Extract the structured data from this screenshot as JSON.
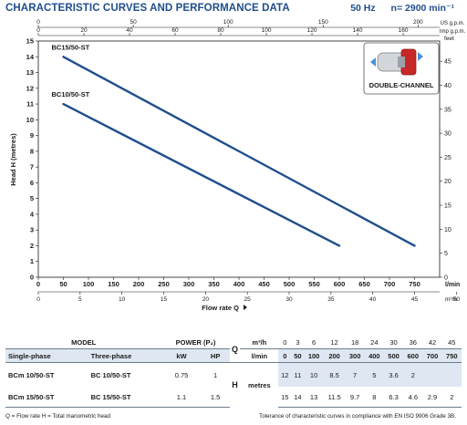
{
  "header": {
    "title": "CHARACTERISTIC CURVES AND PERFORMANCE DATA",
    "frequency": "50 Hz",
    "speed": "n= 2900 min⁻¹"
  },
  "chart_data": {
    "type": "line",
    "xlabel": "Flow rate Q",
    "ylabel": "Head H (metres)",
    "x_unit": "l/min",
    "xlim": [
      0,
      800
    ],
    "ylim": [
      0,
      15
    ],
    "x_ticks": [
      0,
      50,
      100,
      150,
      200,
      250,
      300,
      350,
      400,
      450,
      500,
      550,
      600,
      650,
      700,
      750
    ],
    "y_ticks": [
      0,
      1,
      2,
      3,
      4,
      5,
      6,
      7,
      8,
      9,
      10,
      11,
      12,
      13,
      14,
      15
    ],
    "grid": false,
    "top_axis_uspgm": {
      "unit": "US g.p.m.",
      "ticks": [
        0,
        50,
        100,
        150,
        200
      ]
    },
    "top_axis_impgpm": {
      "unit": "Imp g.p.m.",
      "ticks": [
        0,
        20,
        40,
        60,
        80,
        100,
        120,
        140,
        160
      ]
    },
    "bottom_axis_m3h": {
      "unit": "m³/h",
      "ticks": [
        0,
        5,
        10,
        15,
        20,
        25,
        30,
        35,
        40,
        45,
        50
      ]
    },
    "right_axis_feet": {
      "unit": "feet",
      "ticks": [
        0,
        5,
        10,
        15,
        20,
        25,
        30,
        35,
        40,
        45
      ]
    },
    "series": [
      {
        "name": "BC15/50-ST",
        "x": [
          50,
          750
        ],
        "y": [
          14,
          2
        ]
      },
      {
        "name": "BC10/50-ST",
        "x": [
          50,
          600
        ],
        "y": [
          11,
          2
        ]
      }
    ],
    "annotations": [
      "DOUBLE-CHANNEL"
    ]
  },
  "table": {
    "model_label": "MODEL",
    "single_phase_label": "Single-phase",
    "three_phase_label": "Three-phase",
    "power_label": "POWER (P₂)",
    "kw_label": "kW",
    "hp_label": "HP",
    "q_label": "Q",
    "h_label": "H",
    "m3h_label": "m³/h",
    "lmin_label": "l/min",
    "metres_label": "metres",
    "q_m3h": [
      "0",
      "3",
      "6",
      "12",
      "18",
      "24",
      "30",
      "36",
      "42",
      "45"
    ],
    "q_lmin": [
      "0",
      "50",
      "100",
      "200",
      "300",
      "400",
      "500",
      "600",
      "700",
      "750"
    ],
    "rows": [
      {
        "single": "BCm 10/50-ST",
        "three": "BC 10/50-ST",
        "kw": "0.75",
        "hp": "1",
        "h": [
          "12",
          "11",
          "10",
          "8.5",
          "7",
          "5",
          "3.6",
          "2",
          "",
          ""
        ]
      },
      {
        "single": "BCm 15/50-ST",
        "three": "BC 15/50-ST",
        "kw": "1.1",
        "hp": "1.5",
        "h": [
          "15",
          "14",
          "13",
          "11.5",
          "9.7",
          "8",
          "6.3",
          "4.6",
          "2.9",
          "2"
        ]
      }
    ]
  },
  "footer": {
    "legend": "Q = Flow rate   H = Total manometric head",
    "tolerance": "Tolerance of characteristic curves in compliance with EN ISO 9906 Grade 3B."
  },
  "colors": {
    "accent": "#1f4e8c",
    "curve": "#1f4e8c",
    "table_fill": "#dfe8f2"
  }
}
